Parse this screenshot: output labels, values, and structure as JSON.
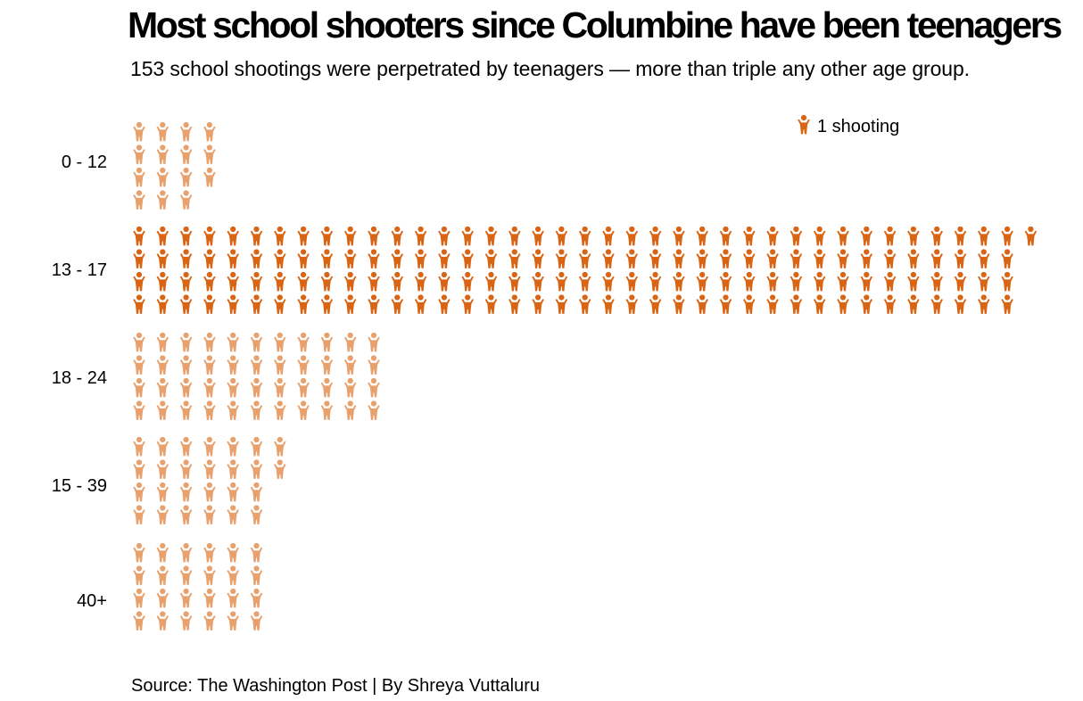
{
  "header": {
    "title": "Most school shooters since Columbine have been teenagers",
    "subtitle": "153 school shootings were perpetrated by teenagers — more than triple any other age group."
  },
  "footer": {
    "source": "Source: The Washington Post | By Shreya Vuttaluru"
  },
  "legend": {
    "label": "1 shooting",
    "icon": "person-icon"
  },
  "colors": {
    "highlight": "#d96414",
    "muted": "#e8a06c"
  },
  "chart_data": {
    "type": "pictogram",
    "title": "Most school shooters since Columbine have been teenagers",
    "unit": "1 shooting",
    "categories": [
      "0 - 12",
      "13 - 17",
      "18 - 24",
      "15 - 39",
      "40+"
    ],
    "values": [
      15,
      153,
      44,
      26,
      24
    ],
    "highlighted_category": "13 - 17"
  }
}
